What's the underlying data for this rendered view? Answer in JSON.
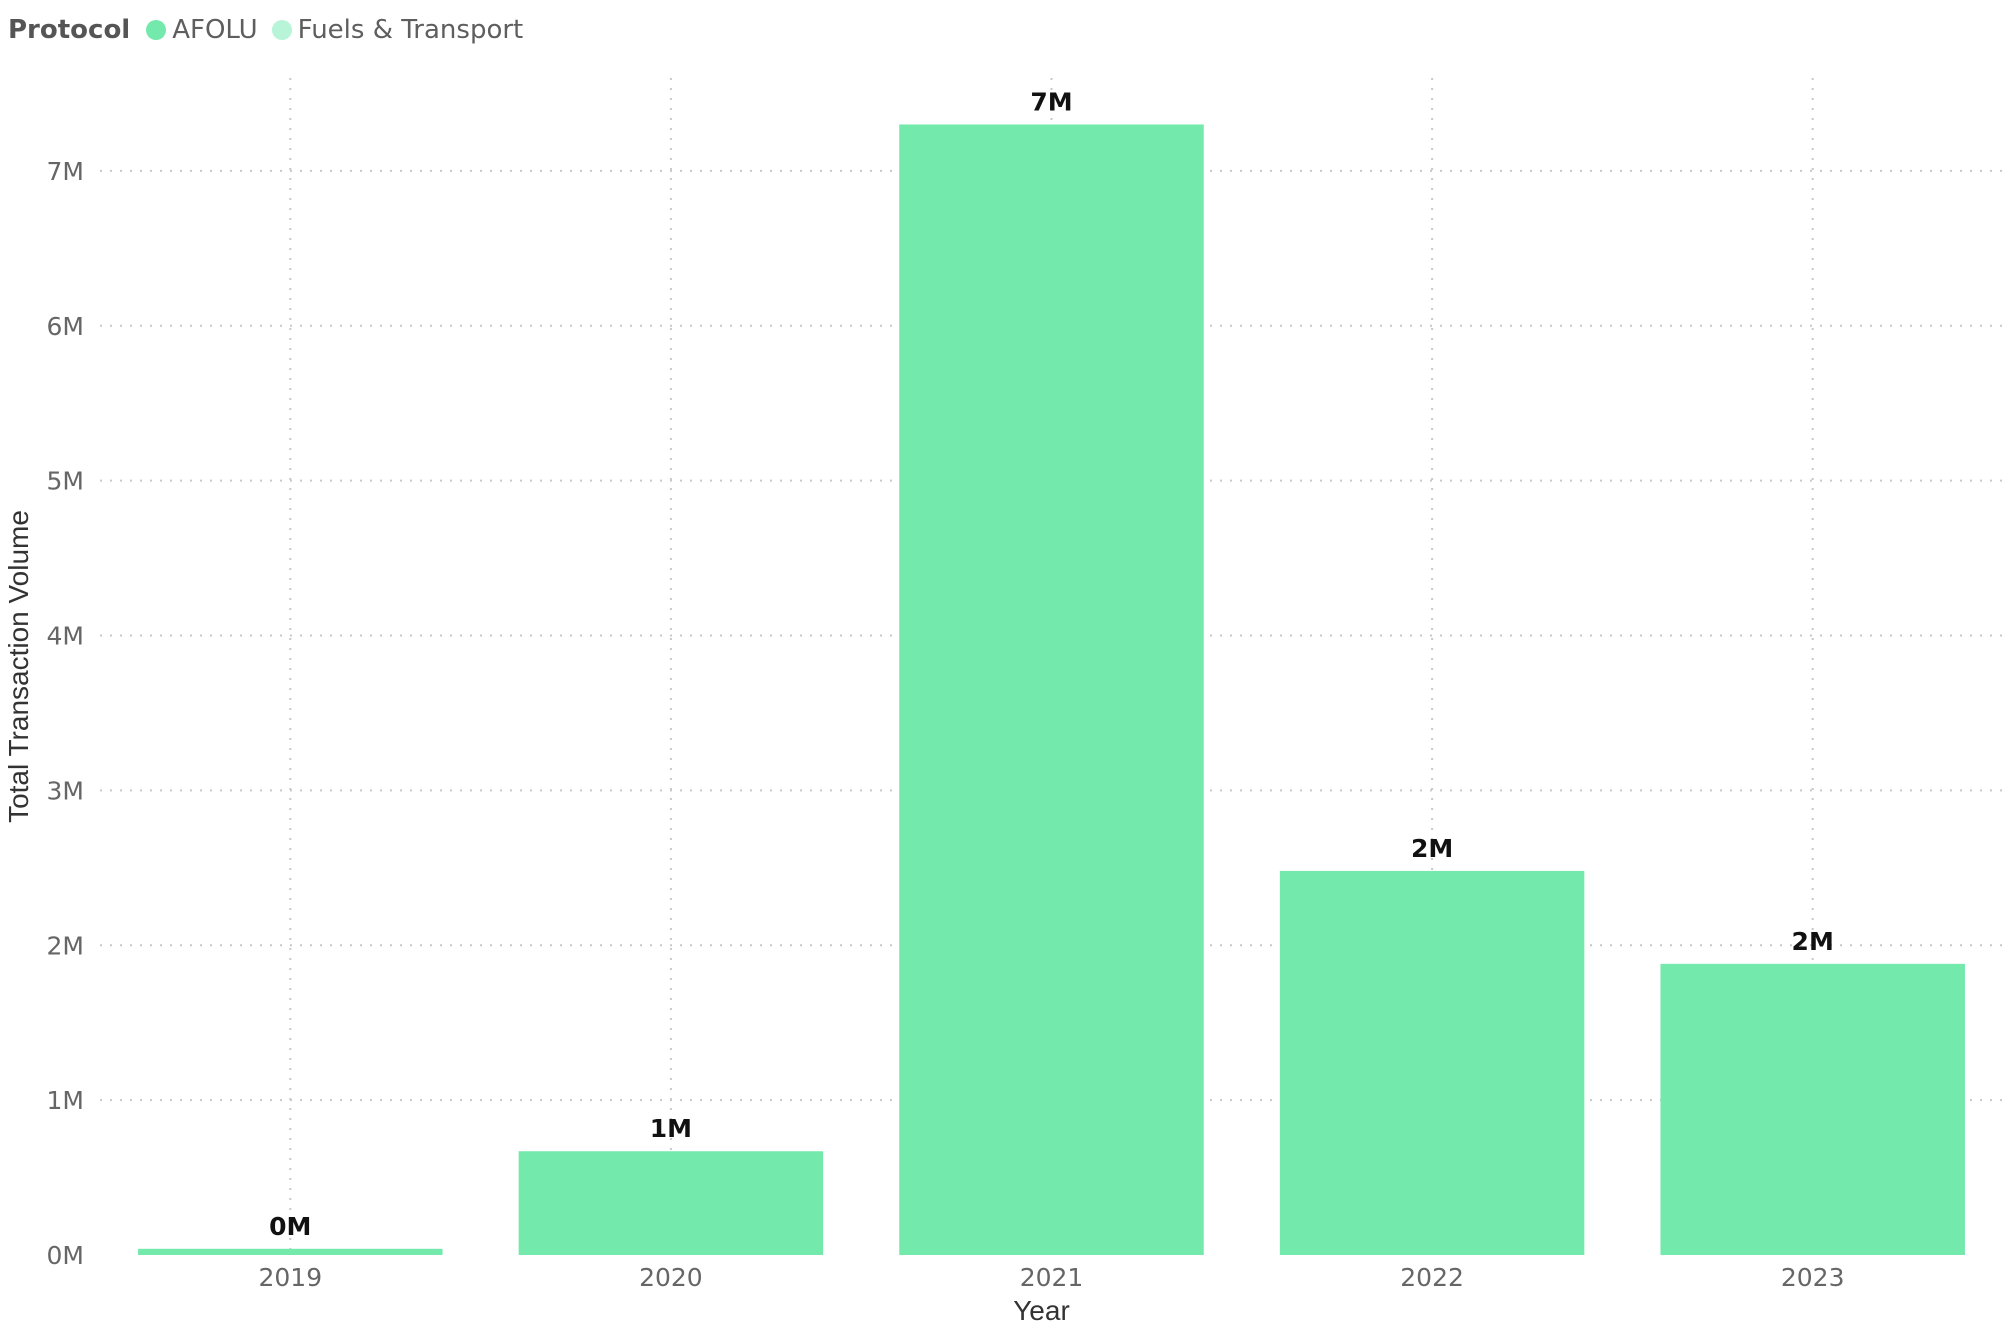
{
  "legend": {
    "title": "Protocol",
    "items": [
      {
        "label": "AFOLU",
        "color": "#74e9ac"
      },
      {
        "label": "Fuels & Transport",
        "color": "#b8f4d8"
      }
    ]
  },
  "chart_data": {
    "type": "bar",
    "title": "",
    "xlabel": "Year",
    "ylabel": "Total Transaction Volume",
    "categories": [
      "2019",
      "2020",
      "2021",
      "2022",
      "2023"
    ],
    "series": [
      {
        "name": "AFOLU",
        "color": "#74e9ac",
        "values": [
          40000,
          670000,
          7300000,
          2480000,
          1880000
        ],
        "data_labels": [
          "0M",
          "1M",
          "7M",
          "2M",
          "2M"
        ]
      },
      {
        "name": "Fuels & Transport",
        "color": "#b8f4d8",
        "values": [
          0,
          0,
          0,
          0,
          0
        ],
        "data_labels": []
      }
    ],
    "y_ticks": [
      0,
      1000000,
      2000000,
      3000000,
      4000000,
      5000000,
      6000000,
      7000000
    ],
    "y_tick_labels": [
      "0M",
      "1M",
      "2M",
      "3M",
      "4M",
      "5M",
      "6M",
      "7M"
    ],
    "ylim": [
      0,
      7600000
    ],
    "grid": true,
    "legend_position": "top-left"
  }
}
